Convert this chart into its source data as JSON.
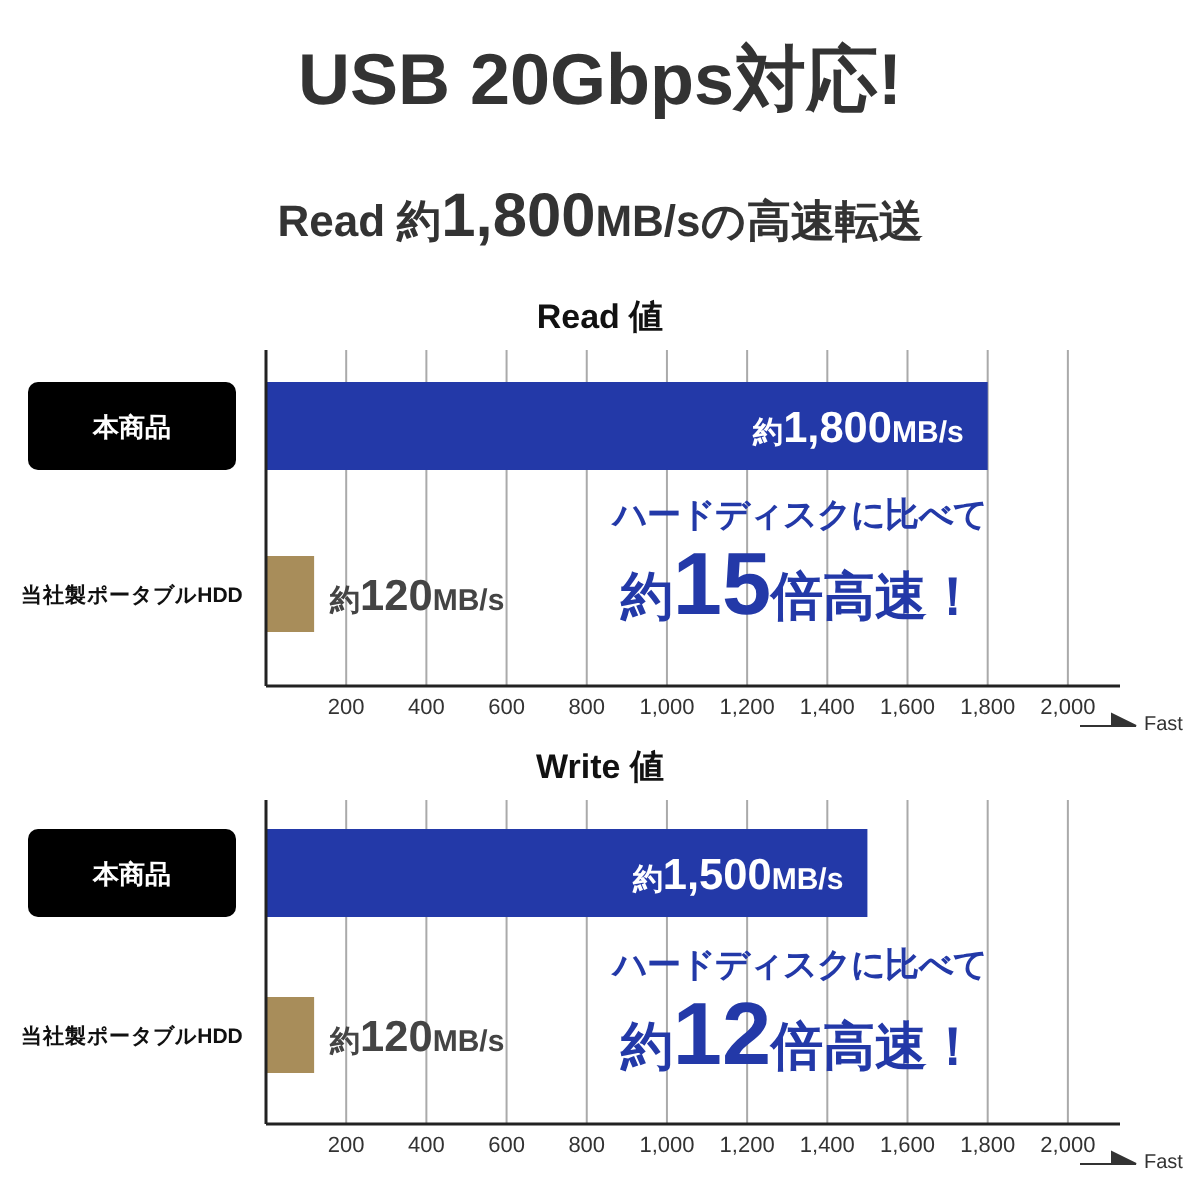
{
  "chart_data": [
    {
      "type": "bar",
      "orientation": "horizontal",
      "title": "Read 値",
      "categories": [
        "本商品",
        "当社製ポータブルHDD"
      ],
      "values": [
        1800,
        120
      ],
      "colors": [
        "#2339a8",
        "#a88d5a"
      ],
      "value_labels": [
        "約1,800MB/s",
        "約120MB/s"
      ],
      "xlim": [
        0,
        2130
      ],
      "xticks": [
        {
          "value": 0,
          "label": null
        },
        {
          "value": 200,
          "label": "200"
        },
        {
          "value": 400,
          "label": "400"
        },
        {
          "value": 600,
          "label": "600"
        },
        {
          "value": 800,
          "label": "800"
        },
        {
          "value": 1000,
          "label": "1,000"
        },
        {
          "value": 1200,
          "label": "1,200"
        },
        {
          "value": 1400,
          "label": "1,400"
        },
        {
          "value": 1600,
          "label": "1,600"
        },
        {
          "value": 1800,
          "label": "1,800"
        },
        {
          "value": 2000,
          "label": "2,000"
        }
      ],
      "grid": "x",
      "annotations": [
        "USB 20Gbps対応!",
        "Read 約1,800MB/sの高速転送",
        "ハードディスクに比べて",
        "約15倍高速！",
        "Fast"
      ]
    },
    {
      "type": "bar",
      "orientation": "horizontal",
      "title": "Write 値",
      "categories": [
        "本商品",
        "当社製ポータブルHDD"
      ],
      "values": [
        1500,
        120
      ],
      "colors": [
        "#2339a8",
        "#a88d5a"
      ],
      "value_labels": [
        "約1,500MB/s",
        "約120MB/s"
      ],
      "xlim": [
        0,
        2130
      ],
      "xticks": [
        {
          "value": 0,
          "label": null
        },
        {
          "value": 200,
          "label": "200"
        },
        {
          "value": 400,
          "label": "400"
        },
        {
          "value": 600,
          "label": "600"
        },
        {
          "value": 800,
          "label": "800"
        },
        {
          "value": 1000,
          "label": "1,000"
        },
        {
          "value": 1200,
          "label": "1,200"
        },
        {
          "value": 1400,
          "label": "1,400"
        },
        {
          "value": 1600,
          "label": "1,600"
        },
        {
          "value": 1800,
          "label": "1,800"
        },
        {
          "value": 2000,
          "label": "2,000"
        }
      ],
      "grid": "x",
      "annotations": [
        "ハードディスクに比べて",
        "約12倍高速！",
        "Fast"
      ]
    }
  ]
}
